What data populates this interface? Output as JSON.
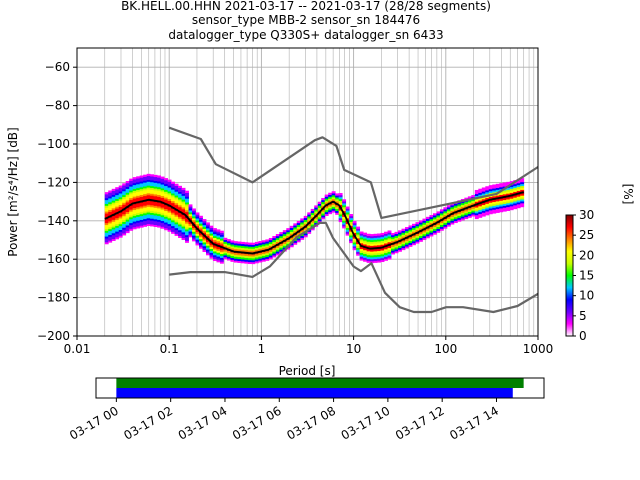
{
  "chart_data": {
    "type": "heatmap",
    "title_lines": [
      "BK.HELL.00.HHN   2021-03-17 -- 2021-03-17  (28/28 segments)",
      "sensor_type MBB-2 sensor_sn 184476",
      "datalogger_type Q330S+ datalogger_sn 6433"
    ],
    "xlabel": "Period [s]",
    "ylabel": "Power [m²/s⁴/Hz] [dB]",
    "xscale": "log",
    "xlim": [
      0.01,
      1000
    ],
    "ylim": [
      -200,
      -50
    ],
    "grid": true,
    "x_ticks": [
      0.01,
      0.1,
      1,
      10,
      100,
      1000
    ],
    "x_tick_labels": [
      "0.01",
      "0.1",
      "1",
      "10",
      "100",
      "1000"
    ],
    "y_ticks": [
      -200,
      -180,
      -160,
      -140,
      -120,
      -100,
      -80,
      -60
    ],
    "y_tick_labels": [
      "−200",
      "−180",
      "−160",
      "−140",
      "−120",
      "−100",
      "−80",
      "−60"
    ],
    "nhnm": {
      "x": [
        0.1,
        0.22,
        0.32,
        0.8,
        3.8,
        4.6,
        6.5,
        7.9,
        15.4,
        20,
        354.8,
        1000
      ],
      "y": [
        -91.5,
        -97.4,
        -110.5,
        -120,
        -98,
        -96.5,
        -101,
        -113.5,
        -120,
        -138.5,
        -126,
        -112
      ]
    },
    "nlnm": {
      "x": [
        0.1,
        0.17,
        0.4,
        0.8,
        1.24,
        2.4,
        4.3,
        5,
        6,
        10,
        12,
        15.6,
        21.9,
        31.6,
        45,
        70,
        101,
        154,
        328,
        600,
        1000
      ],
      "y": [
        -168,
        -166.7,
        -166.7,
        -169.2,
        -163.7,
        -148.6,
        -141.1,
        -141.1,
        -149,
        -163.8,
        -166.2,
        -162.1,
        -177.5,
        -185,
        -187.5,
        -187.5,
        -185,
        -185,
        -187.5,
        -184.4,
        -178
      ]
    },
    "mode": {
      "x": [
        0.02,
        0.03,
        0.04,
        0.06,
        0.08,
        0.1,
        0.15,
        0.2,
        0.3,
        0.5,
        0.8,
        1.2,
        2,
        3,
        4,
        5,
        6,
        7,
        8,
        10,
        12,
        15,
        20,
        30,
        50,
        80,
        120,
        200,
        300,
        500,
        700
      ],
      "y": [
        -139,
        -135,
        -131,
        -129,
        -130,
        -132,
        -137,
        -144,
        -152,
        -156,
        -157,
        -155,
        -149,
        -143,
        -137,
        -132,
        -130,
        -132,
        -137,
        -147,
        -153,
        -154.5,
        -154,
        -151,
        -146,
        -141,
        -136,
        -132,
        -129,
        -127,
        -125
      ]
    },
    "colorbar": {
      "label": "[%]",
      "range": [
        0,
        30
      ],
      "ticks": [
        0,
        5,
        10,
        15,
        20,
        25,
        30
      ],
      "tick_labels": [
        "0",
        "5",
        "10",
        "15",
        "20",
        "25",
        "30"
      ],
      "colors": [
        "#ffffff",
        "#ff00ff",
        "#6a00ff",
        "#0000ff",
        "#00c8ff",
        "#00ff00",
        "#c8ff00",
        "#ffff00",
        "#ff8000",
        "#ff0000",
        "#800000"
      ]
    },
    "timeline": {
      "x_ticks_hours": [
        0,
        2,
        4,
        6,
        8,
        10,
        12,
        14
      ],
      "x_tick_labels": [
        "03-17 00",
        "03-17 02",
        "03-17 04",
        "03-17 06",
        "03-17 08",
        "03-17 10",
        "03-17 12",
        "03-17 14"
      ],
      "xlim_hours": [
        -0.75,
        15.75
      ],
      "bars": [
        {
          "start": 0,
          "end": 15.0,
          "color": "#008000"
        },
        {
          "start": 0,
          "end": 14.6,
          "color": "#0000ff"
        }
      ]
    },
    "colors": {
      "model_lines": "#666666",
      "mode_line": "#000000",
      "grid": "#b0b0b0"
    }
  }
}
